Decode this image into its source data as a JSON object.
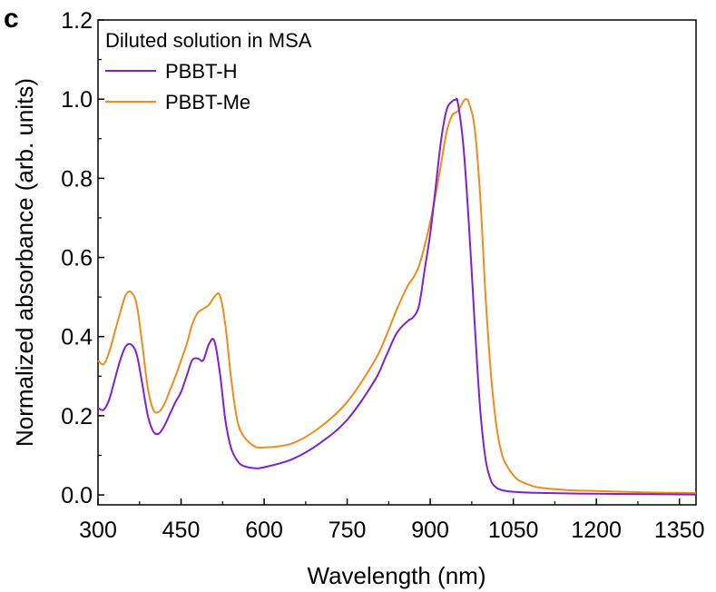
{
  "panel_label": "c",
  "chart_data": {
    "type": "line",
    "title": "",
    "xlabel": "Wavelength (nm)",
    "ylabel": "Normalized absorbance (arb. units)",
    "xlim": [
      300,
      1380
    ],
    "ylim": [
      -0.025,
      1.2
    ],
    "xticks": [
      300,
      450,
      600,
      750,
      900,
      1050,
      1200,
      1350
    ],
    "yticks": [
      0.0,
      0.2,
      0.4,
      0.6,
      0.8,
      1.0,
      1.2
    ],
    "xtick_labels": [
      "300",
      "450",
      "600",
      "750",
      "900",
      "1050",
      "1200",
      "1350"
    ],
    "ytick_labels": [
      "0.0",
      "0.2",
      "0.4",
      "0.6",
      "0.8",
      "1.0",
      "1.2"
    ],
    "grid": false,
    "legend": {
      "title": "Diluted solution in MSA",
      "placement": "top-left"
    },
    "series": [
      {
        "name": "PBBT-H",
        "color": "#7f1fd6",
        "x": [
          300,
          310,
          320,
          330,
          340,
          350,
          360,
          370,
          380,
          390,
          400,
          410,
          420,
          430,
          440,
          450,
          460,
          470,
          480,
          490,
          500,
          510,
          520,
          530,
          540,
          550,
          560,
          580,
          600,
          650,
          700,
          750,
          800,
          820,
          840,
          860,
          870,
          880,
          890,
          900,
          910,
          920,
          930,
          940,
          945,
          950,
          960,
          970,
          980,
          990,
          1000,
          1010,
          1020,
          1030,
          1050,
          1100,
          1200,
          1300,
          1380
        ],
        "y": [
          0.22,
          0.215,
          0.24,
          0.29,
          0.34,
          0.375,
          0.38,
          0.355,
          0.28,
          0.2,
          0.16,
          0.155,
          0.175,
          0.205,
          0.235,
          0.26,
          0.3,
          0.34,
          0.345,
          0.34,
          0.38,
          0.39,
          0.31,
          0.19,
          0.12,
          0.09,
          0.075,
          0.068,
          0.07,
          0.09,
          0.13,
          0.19,
          0.29,
          0.35,
          0.41,
          0.44,
          0.45,
          0.48,
          0.57,
          0.66,
          0.78,
          0.9,
          0.975,
          0.995,
          0.998,
          0.99,
          0.88,
          0.68,
          0.44,
          0.22,
          0.09,
          0.035,
          0.018,
          0.012,
          0.008,
          0.005,
          0.003,
          0.002,
          0.001
        ]
      },
      {
        "name": "PBBT-Me",
        "color": "#f28a1c",
        "x": [
          300,
          310,
          320,
          330,
          340,
          350,
          360,
          370,
          380,
          390,
          400,
          410,
          420,
          430,
          440,
          450,
          460,
          470,
          480,
          490,
          500,
          510,
          520,
          530,
          540,
          550,
          560,
          580,
          600,
          650,
          700,
          750,
          800,
          820,
          840,
          860,
          870,
          880,
          890,
          900,
          910,
          920,
          930,
          940,
          950,
          960,
          965,
          970,
          980,
          990,
          1000,
          1010,
          1020,
          1030,
          1040,
          1050,
          1060,
          1080,
          1100,
          1150,
          1200,
          1300,
          1380
        ],
        "y": [
          0.34,
          0.33,
          0.36,
          0.41,
          0.46,
          0.505,
          0.512,
          0.48,
          0.38,
          0.27,
          0.215,
          0.21,
          0.23,
          0.265,
          0.3,
          0.34,
          0.38,
          0.43,
          0.46,
          0.47,
          0.48,
          0.5,
          0.505,
          0.43,
          0.3,
          0.2,
          0.155,
          0.125,
          0.12,
          0.13,
          0.17,
          0.235,
          0.34,
          0.4,
          0.47,
          0.53,
          0.55,
          0.58,
          0.63,
          0.69,
          0.76,
          0.84,
          0.92,
          0.96,
          0.97,
          0.995,
          1.0,
          0.99,
          0.93,
          0.76,
          0.5,
          0.3,
          0.17,
          0.1,
          0.07,
          0.05,
          0.037,
          0.025,
          0.018,
          0.012,
          0.01,
          0.006,
          0.005
        ]
      }
    ]
  }
}
